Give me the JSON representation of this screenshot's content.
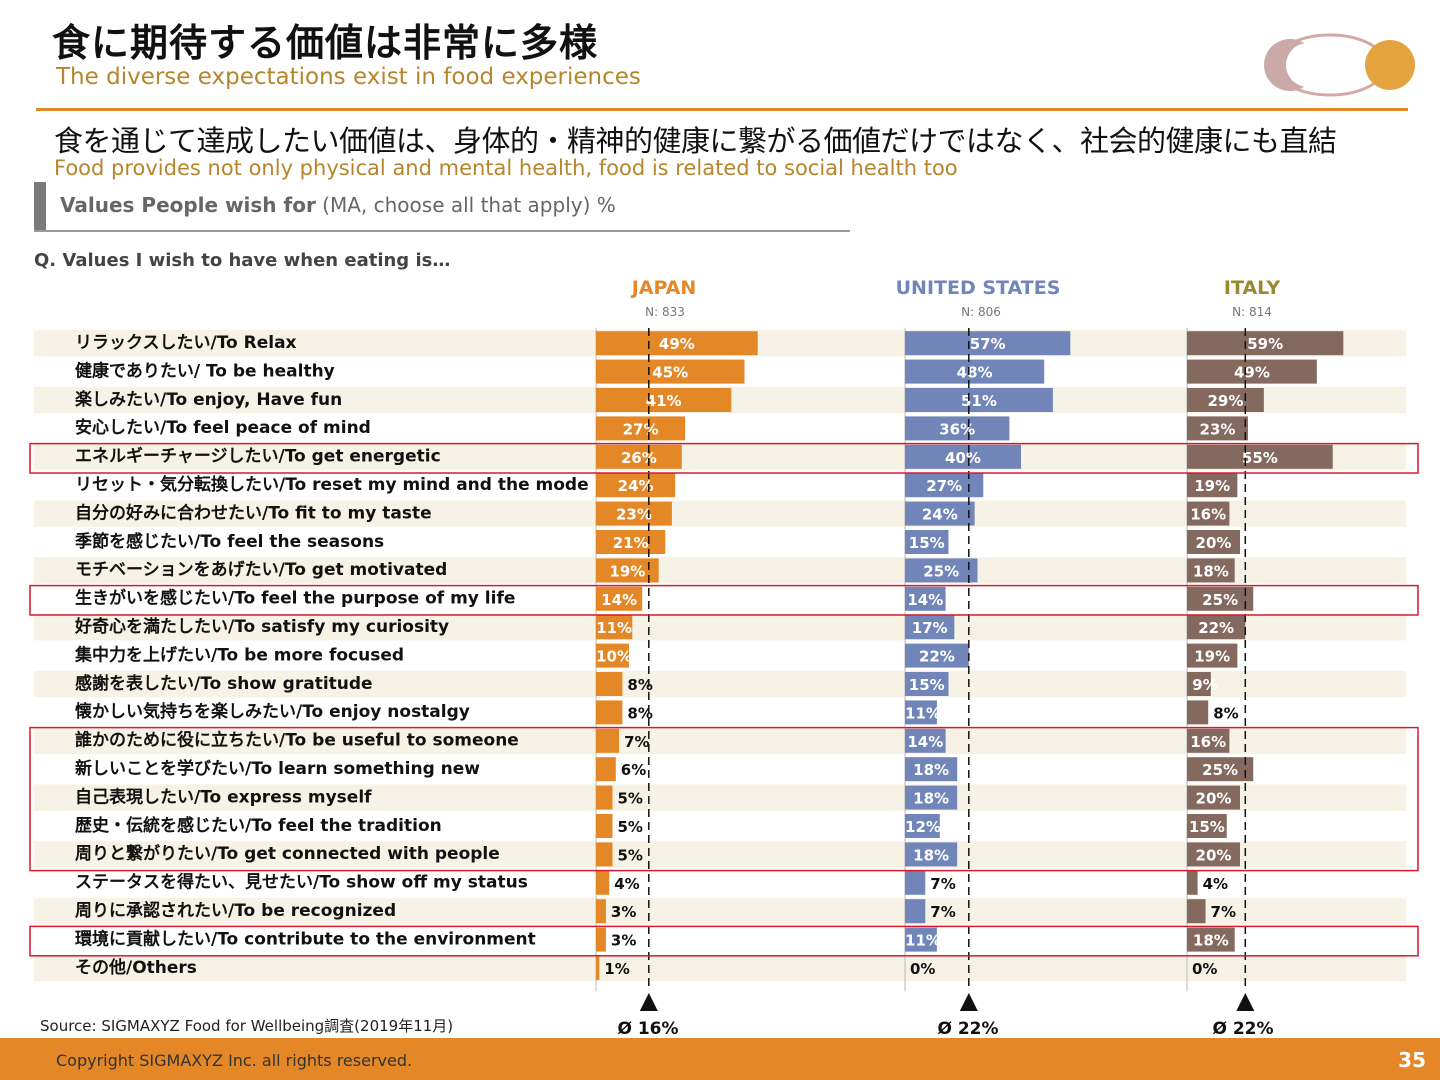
{
  "title": "食に期待する価値は非常に多様",
  "subtitle": "The diverse expectations exist in food experiences",
  "headline": "食を通じて達成したい価値は、身体的・精神的健康に繋がる価値だけではなく、社会的健康にも直結",
  "headline_en": "Food provides not only physical and mental health, food is related to social health too",
  "section_title_bold": "Values People wish for",
  "section_title_rest": " (MA, choose all that apply) %",
  "question": "Q. Values I wish to have when eating is…",
  "source": "Source: SIGMAXYZ Food for Wellbeing調査(2019年11月)",
  "copyright": "Copyright SIGMAXYZ Inc. all rights reserved.",
  "page_number": "35",
  "colors": {
    "accent": "#e48827",
    "japan": "#e48827",
    "us": "#7185b8",
    "italy": "#84695f",
    "highlight": "#d8192f",
    "row_band": "#f6f2e6"
  },
  "logo_icon": "overlapping-circles-logo",
  "countries": [
    {
      "name": "JAPAN",
      "n": "N: 833",
      "avg_label": "Ø 16%",
      "avg": 16,
      "color": "#e48827"
    },
    {
      "name": "UNITED STATES",
      "n": "N: 806",
      "avg_label": "Ø 22%",
      "avg": 22,
      "color": "#7185b8"
    },
    {
      "name": "ITALY",
      "n": "N: 814",
      "avg_label": "Ø 22%",
      "avg": 22,
      "color": "#84695f"
    }
  ],
  "chart_data": {
    "type": "bar",
    "orientation": "horizontal",
    "xlim": [
      0,
      100
    ],
    "categories": [
      "リラックスしたい/To Relax",
      "健康でありたい/ To be healthy",
      "楽しみたい/To enjoy, Have fun",
      "安心したい/To feel peace of mind",
      "エネルギーチャージしたい/To get energetic",
      "リセット・気分転換したい/To reset my mind and the mode",
      "自分の好みに合わせたい/To fit to my taste",
      "季節を感じたい/To feel the seasons",
      "モチベーションをあげたい/To get motivated",
      "生きがいを感じたい/To feel the purpose of my life",
      "好奇心を満たしたい/To satisfy my curiosity",
      "集中力を上げたい/To be more focused",
      "感謝を表したい/To show gratitude",
      "懐かしい気持ちを楽しみたい/To enjoy nostalgy",
      "誰かのために役に立ちたい/To be useful to someone",
      "新しいことを学びたい/To learn something new",
      "自己表現したい/To express myself",
      "歴史・伝統を感じたい/To feel the tradition",
      "周りと繋がりたい/To get connected with people",
      "ステータスを得たい、見せたい/To show off my status",
      "周りに承認されたい/To be recognized",
      "環境に貢献したい/To contribute to the environment",
      "その他/Others"
    ],
    "series": [
      {
        "name": "JAPAN",
        "values": [
          49,
          45,
          41,
          27,
          26,
          24,
          23,
          21,
          19,
          14,
          11,
          10,
          8,
          8,
          7,
          6,
          5,
          5,
          5,
          4,
          3,
          3,
          1
        ]
      },
      {
        "name": "UNITED STATES",
        "values": [
          57,
          48,
          51,
          36,
          40,
          27,
          24,
          15,
          25,
          14,
          17,
          22,
          15,
          11,
          14,
          18,
          18,
          12,
          18,
          7,
          7,
          11,
          0
        ]
      },
      {
        "name": "ITALY",
        "values": [
          59,
          49,
          29,
          23,
          55,
          19,
          16,
          20,
          18,
          25,
          22,
          19,
          9,
          8,
          16,
          25,
          20,
          15,
          20,
          4,
          7,
          18,
          0
        ]
      }
    ],
    "value_labels": [
      [
        "49%",
        "45%",
        "41%",
        "27%",
        "26%",
        "24%",
        "23%",
        "21%",
        "19%",
        "14%",
        "11%",
        "10%",
        "8%",
        "8%",
        "7%",
        "6%",
        "5%",
        "5%",
        "5%",
        "4%",
        "3%",
        "3%",
        "1%"
      ],
      [
        "57%",
        "48%",
        "51%",
        "36%",
        "40%",
        "27%",
        "24%",
        "15%",
        "25%",
        "14%",
        "17%",
        "22%",
        "15%",
        "11%",
        "14%",
        "18%",
        "18%",
        "12%",
        "18%",
        "7%",
        "7%",
        "11%",
        "0%"
      ],
      [
        "59%",
        "49%",
        "29%",
        "23%",
        "55%",
        "19%",
        "16%",
        "20%",
        "18%",
        "25%",
        "22%",
        "19%",
        "9%",
        "8%",
        "16%",
        "25%",
        "20%",
        "15%",
        "20%",
        "4%",
        "7%",
        "18%",
        "0%"
      ]
    ],
    "highlighted_categories": [
      4,
      9,
      14,
      15,
      16,
      17,
      18,
      21
    ],
    "averages": [
      16,
      22,
      22
    ]
  }
}
